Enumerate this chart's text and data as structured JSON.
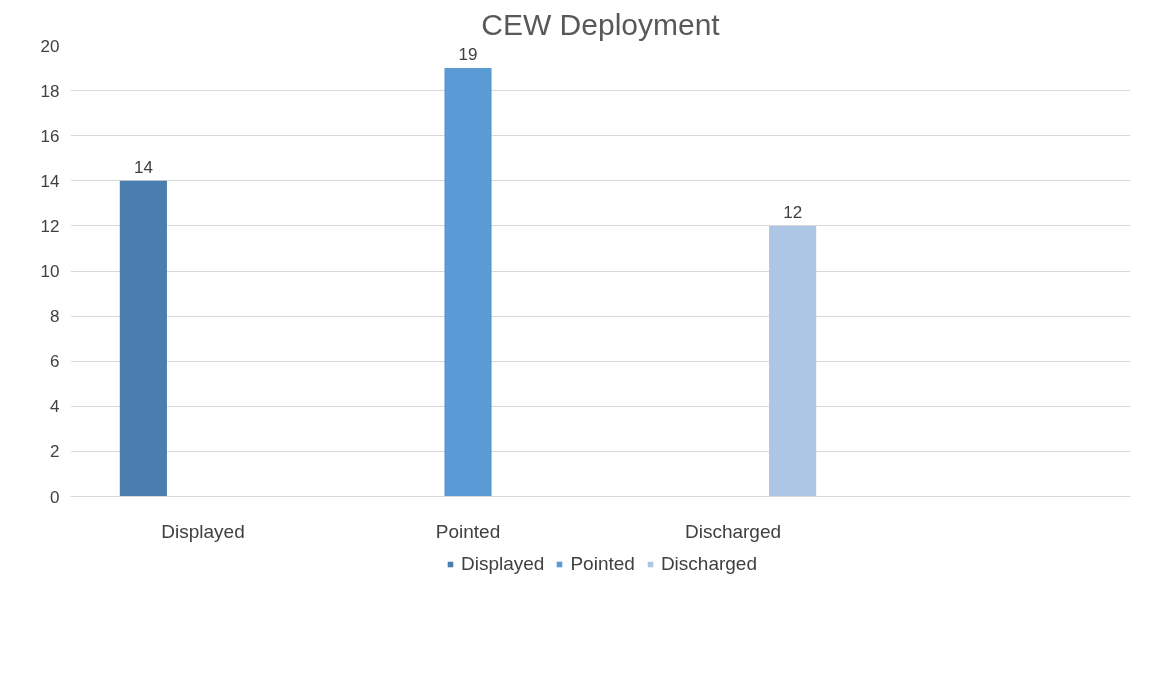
{
  "chart_data": {
    "type": "bar",
    "title": "CEW Deployment",
    "categories": [
      "Displayed",
      "Pointed",
      "Discharged",
      null
    ],
    "series": [
      {
        "name": "Displayed",
        "color": "#4a7eb0",
        "values": [
          14,
          null,
          null,
          null
        ]
      },
      {
        "name": "Pointed",
        "color": "#5b9bd5",
        "values": [
          null,
          19,
          null,
          null
        ]
      },
      {
        "name": "Discharged",
        "color": "#adc6e6",
        "values": [
          null,
          null,
          12,
          null
        ]
      }
    ],
    "ylim": [
      0,
      20
    ],
    "yticks": [
      0,
      2,
      4,
      6,
      8,
      10,
      12,
      14,
      16,
      18,
      20
    ],
    "grid": "y",
    "legend": "bottom",
    "data_labels": true
  }
}
